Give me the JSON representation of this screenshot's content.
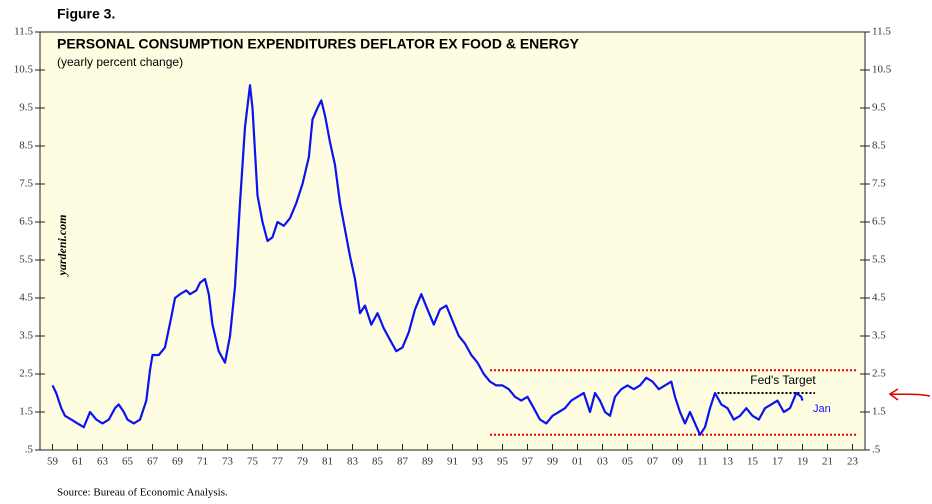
{
  "figure_label": "Figure 3.",
  "source": "Source: Bureau of Economic Analysis.",
  "chart_data": {
    "type": "line",
    "title": "PERSONAL CONSUMPTION EXPENDITURES DEFLATOR EX FOOD & ENERGY",
    "subtitle": "(yearly percent change)",
    "watermark": "yardeni.com",
    "annotations": [
      "Fed's Target",
      "Jan"
    ],
    "x": [
      1959.0,
      1959.3,
      1959.7,
      1960.0,
      1960.5,
      1961.0,
      1961.5,
      1962.0,
      1962.5,
      1963.0,
      1963.5,
      1964.0,
      1964.3,
      1964.7,
      1965.0,
      1965.5,
      1966.0,
      1966.5,
      1966.8,
      1967.0,
      1967.5,
      1968.0,
      1968.5,
      1968.8,
      1969.2,
      1969.7,
      1970.0,
      1970.5,
      1970.8,
      1971.2,
      1971.5,
      1971.8,
      1972.3,
      1972.8,
      1973.2,
      1973.6,
      1974.0,
      1974.4,
      1974.8,
      1975.0,
      1975.4,
      1975.8,
      1976.2,
      1976.6,
      1977.0,
      1977.5,
      1978.0,
      1978.5,
      1979.0,
      1979.5,
      1979.8,
      1980.2,
      1980.5,
      1980.8,
      1981.2,
      1981.6,
      1982.0,
      1982.4,
      1982.8,
      1983.2,
      1983.6,
      1984.0,
      1984.5,
      1985.0,
      1985.5,
      1986.0,
      1986.5,
      1987.0,
      1987.5,
      1988.0,
      1988.5,
      1989.0,
      1989.5,
      1990.0,
      1990.5,
      1991.0,
      1991.5,
      1992.0,
      1992.5,
      1993.0,
      1993.5,
      1994.0,
      1994.5,
      1995.0,
      1995.5,
      1996.0,
      1996.5,
      1997.0,
      1997.5,
      1998.0,
      1998.5,
      1999.0,
      1999.5,
      2000.0,
      2000.5,
      2001.0,
      2001.5,
      2002.0,
      2002.4,
      2002.8,
      2003.2,
      2003.6,
      2004.0,
      2004.5,
      2005.0,
      2005.5,
      2006.0,
      2006.5,
      2007.0,
      2007.5,
      2008.0,
      2008.5,
      2008.8,
      2009.2,
      2009.6,
      2010.0,
      2010.4,
      2010.8,
      2011.2,
      2011.6,
      2012.0,
      2012.5,
      2013.0,
      2013.5,
      2014.0,
      2014.5,
      2015.0,
      2015.5,
      2016.0,
      2016.5,
      2017.0,
      2017.5,
      2018.0,
      2018.5,
      2018.9,
      2019.0
    ],
    "series": [
      {
        "name": "PCE deflator ex food & energy",
        "color": "#0a14f0",
        "values": [
          2.2,
          2.0,
          1.6,
          1.4,
          1.3,
          1.2,
          1.1,
          1.5,
          1.3,
          1.2,
          1.3,
          1.6,
          1.7,
          1.5,
          1.3,
          1.2,
          1.3,
          1.8,
          2.6,
          3.0,
          3.0,
          3.2,
          4.0,
          4.5,
          4.6,
          4.7,
          4.6,
          4.7,
          4.9,
          5.0,
          4.6,
          3.8,
          3.1,
          2.8,
          3.5,
          4.8,
          7.0,
          9.0,
          10.1,
          9.5,
          7.2,
          6.5,
          6.0,
          6.1,
          6.5,
          6.4,
          6.6,
          7.0,
          7.5,
          8.2,
          9.2,
          9.5,
          9.7,
          9.3,
          8.6,
          8.0,
          7.0,
          6.3,
          5.6,
          5.0,
          4.1,
          4.3,
          3.8,
          4.1,
          3.7,
          3.4,
          3.1,
          3.2,
          3.6,
          4.2,
          4.6,
          4.2,
          3.8,
          4.2,
          4.3,
          3.9,
          3.5,
          3.3,
          3.0,
          2.8,
          2.5,
          2.3,
          2.2,
          2.2,
          2.1,
          1.9,
          1.8,
          1.9,
          1.6,
          1.3,
          1.2,
          1.4,
          1.5,
          1.6,
          1.8,
          1.9,
          2.0,
          1.5,
          2.0,
          1.8,
          1.5,
          1.4,
          1.9,
          2.1,
          2.2,
          2.1,
          2.2,
          2.4,
          2.3,
          2.1,
          2.2,
          2.3,
          1.9,
          1.5,
          1.2,
          1.5,
          1.2,
          0.9,
          1.1,
          1.6,
          2.0,
          1.7,
          1.6,
          1.3,
          1.4,
          1.6,
          1.4,
          1.3,
          1.6,
          1.7,
          1.8,
          1.5,
          1.6,
          2.0,
          1.9,
          1.8
        ]
      }
    ],
    "reference_lines": [
      {
        "value": 2.6,
        "x": [
          1994,
          2023.4
        ],
        "color": "#e00000"
      },
      {
        "value": 0.9,
        "x": [
          1994,
          2023.4
        ],
        "color": "#e00000"
      },
      {
        "value": 2.0,
        "x": [
          2012.2,
          2020
        ],
        "color": "#000000"
      }
    ],
    "xlim": [
      1958,
      2024
    ],
    "xticks": [
      {
        "value": 1959,
        "label": "59"
      },
      {
        "value": 1961,
        "label": "61"
      },
      {
        "value": 1963,
        "label": "63"
      },
      {
        "value": 1965,
        "label": "65"
      },
      {
        "value": 1967,
        "label": "67"
      },
      {
        "value": 1969,
        "label": "69"
      },
      {
        "value": 1971,
        "label": "71"
      },
      {
        "value": 1973,
        "label": "73"
      },
      {
        "value": 1975,
        "label": "75"
      },
      {
        "value": 1977,
        "label": "77"
      },
      {
        "value": 1979,
        "label": "79"
      },
      {
        "value": 1981,
        "label": "81"
      },
      {
        "value": 1983,
        "label": "83"
      },
      {
        "value": 1985,
        "label": "85"
      },
      {
        "value": 1987,
        "label": "87"
      },
      {
        "value": 1989,
        "label": "89"
      },
      {
        "value": 1991,
        "label": "91"
      },
      {
        "value": 1993,
        "label": "93"
      },
      {
        "value": 1995,
        "label": "95"
      },
      {
        "value": 1997,
        "label": "97"
      },
      {
        "value": 1999,
        "label": "99"
      },
      {
        "value": 2001,
        "label": "01"
      },
      {
        "value": 2003,
        "label": "03"
      },
      {
        "value": 2005,
        "label": "05"
      },
      {
        "value": 2007,
        "label": "07"
      },
      {
        "value": 2009,
        "label": "09"
      },
      {
        "value": 2011,
        "label": "11"
      },
      {
        "value": 2013,
        "label": "13"
      },
      {
        "value": 2015,
        "label": "15"
      },
      {
        "value": 2017,
        "label": "17"
      },
      {
        "value": 2019,
        "label": "19"
      },
      {
        "value": 2021,
        "label": "21"
      },
      {
        "value": 2023,
        "label": "23"
      }
    ],
    "ylim": [
      0.5,
      11.5
    ],
    "yticks": [
      {
        "value": 0.5,
        "label": ".5"
      },
      1.5,
      2.5,
      3.5,
      4.5,
      5.5,
      6.5,
      7.5,
      8.5,
      9.5,
      10.5,
      11.5
    ],
    "background": "#fffde1"
  }
}
